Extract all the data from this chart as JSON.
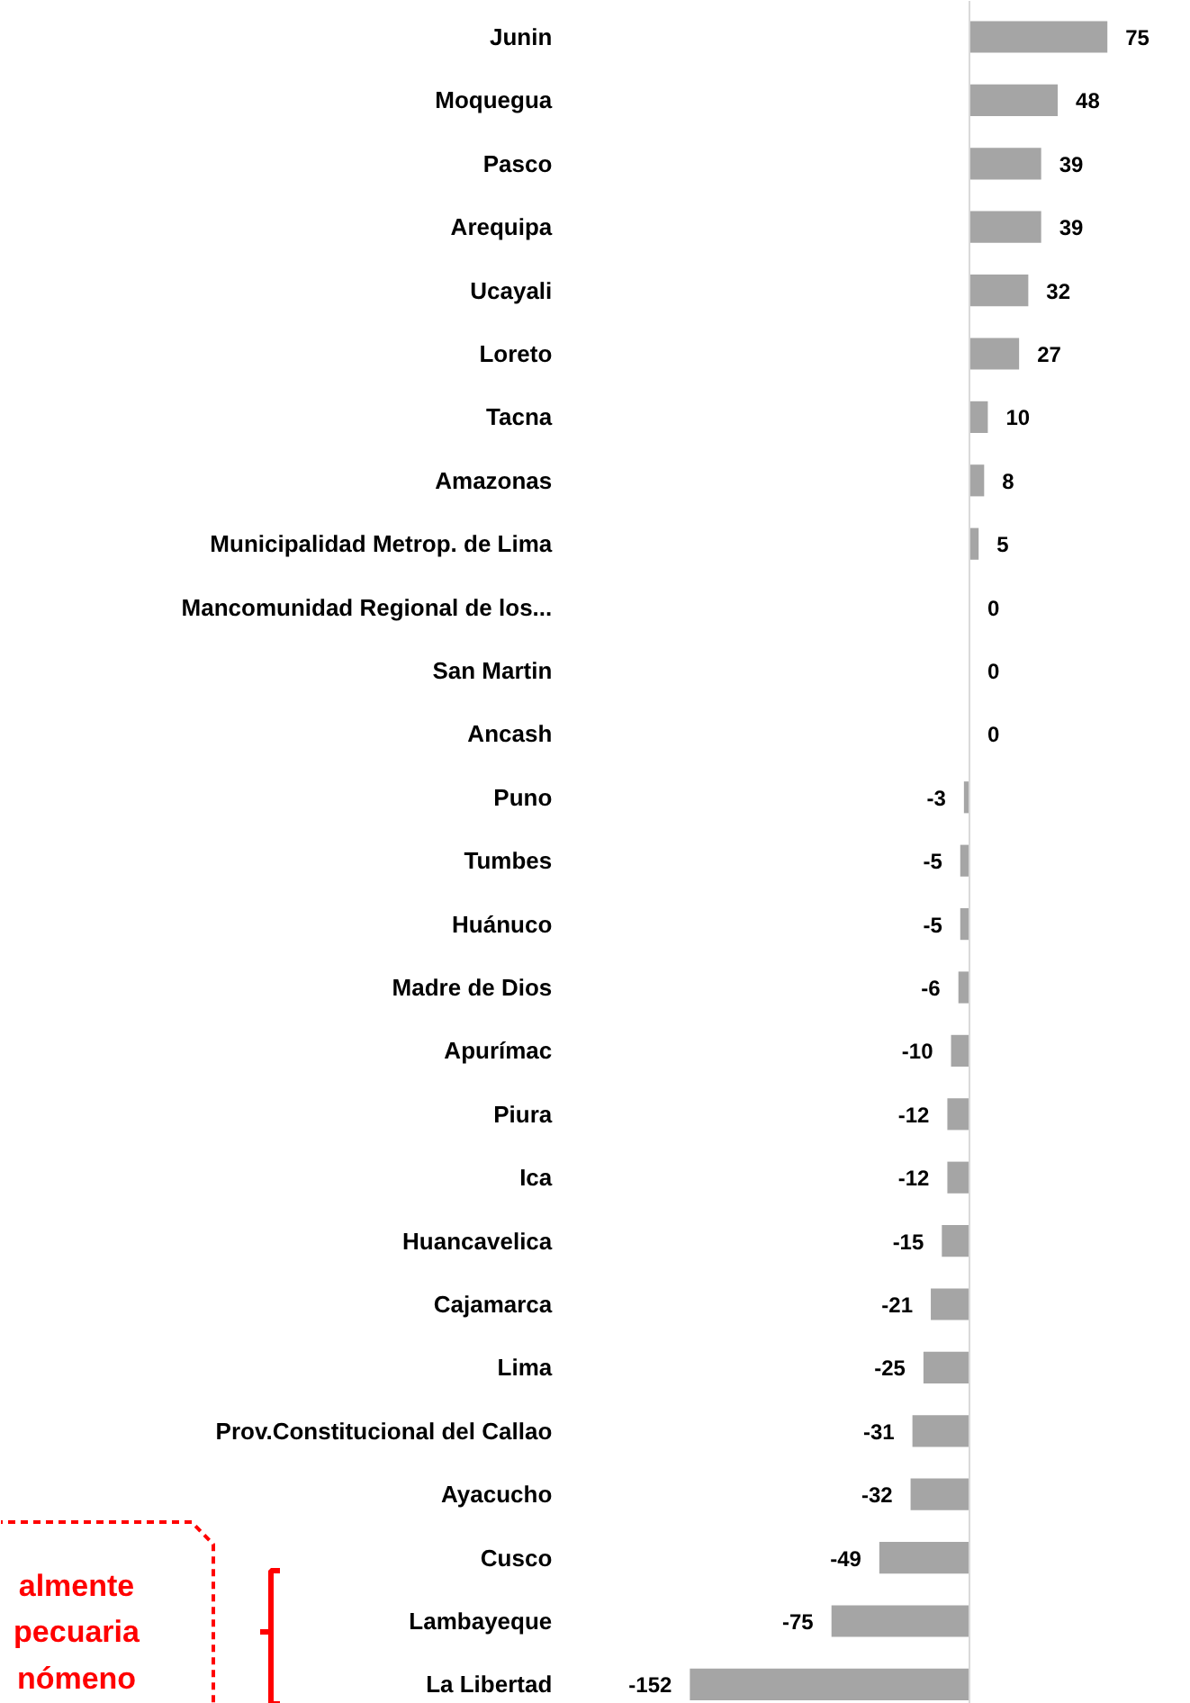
{
  "chart_data": {
    "type": "bar",
    "orientation": "horizontal",
    "data_labels": true,
    "grid": false,
    "categories": [
      "Junin",
      "Moquegua",
      "Pasco",
      "Arequipa",
      "Ucayali",
      "Loreto",
      "Tacna",
      "Amazonas",
      "Municipalidad Metrop. de Lima",
      "Mancomunidad Regional de los...",
      "San Martin",
      "Ancash",
      "Puno",
      "Tumbes",
      "Huánuco",
      "Madre de Dios",
      "Apurímac",
      "Piura",
      "Ica",
      "Huancavelica",
      "Cajamarca",
      "Lima",
      "Prov.Constitucional del Callao",
      "Ayacucho",
      "Cusco",
      "Lambayeque",
      "La Libertad"
    ],
    "values": [
      75,
      48,
      39,
      39,
      32,
      27,
      10,
      8,
      5,
      0,
      0,
      0,
      -3,
      -5,
      -5,
      -6,
      -10,
      -12,
      -12,
      -15,
      -21,
      -25,
      -31,
      -32,
      -49,
      -75,
      -152
    ],
    "color": "#a5a5a5",
    "annotations": [
      "almente\npecuaria\nnómeno"
    ]
  }
}
